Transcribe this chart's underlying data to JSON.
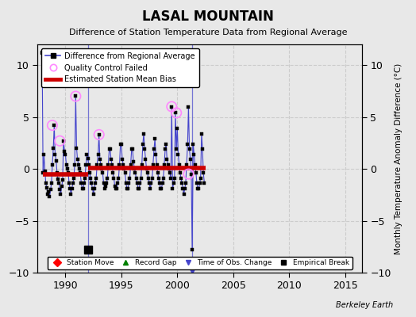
{
  "title": "LASAL MOUNTAIN",
  "subtitle": "Difference of Station Temperature Data from Regional Average",
  "ylabel": "Monthly Temperature Anomaly Difference (°C)",
  "ylim": [
    -10,
    12
  ],
  "yticks": [
    -10,
    -5,
    0,
    5,
    10
  ],
  "xlim": [
    1987.5,
    2016.5
  ],
  "xticks": [
    1990,
    1995,
    2000,
    2005,
    2010,
    2015
  ],
  "bg_color": "#e8e8e8",
  "plot_bg_color": "#e8e8e8",
  "grid_color": "#cccccc",
  "line_color": "#4444cc",
  "marker_color": "#000000",
  "bias_color": "#cc0000",
  "bias_seg1": [
    1988.0,
    1992.0,
    -0.55
  ],
  "bias_seg2": [
    1992.0,
    2002.5,
    0.08
  ],
  "empirical_break_x": 1992.0,
  "empirical_break_y": -7.8,
  "vertical_line1_x": 1992.0,
  "vertical_line2_x": 2001.3,
  "berkeley_earth_label": "Berkeley Earth",
  "qc_failed_x": [
    1988.83,
    1989.5,
    1990.92,
    1993.0,
    1999.5,
    1999.92,
    2001.0
  ],
  "qc_failed_y": [
    4.2,
    2.7,
    7.0,
    3.3,
    6.0,
    5.4,
    -0.5
  ],
  "data_x": [
    1988.0,
    1988.08,
    1988.17,
    1988.25,
    1988.33,
    1988.42,
    1988.5,
    1988.58,
    1988.67,
    1988.75,
    1988.83,
    1988.92,
    1989.0,
    1989.08,
    1989.17,
    1989.25,
    1989.33,
    1989.42,
    1989.5,
    1989.58,
    1989.67,
    1989.75,
    1989.83,
    1989.92,
    1990.0,
    1990.08,
    1990.17,
    1990.25,
    1990.33,
    1990.42,
    1990.5,
    1990.58,
    1990.67,
    1990.75,
    1990.83,
    1990.92,
    1991.0,
    1991.08,
    1991.17,
    1991.25,
    1991.33,
    1991.42,
    1991.5,
    1991.58,
    1991.67,
    1991.75,
    1991.83,
    1991.92,
    1992.0,
    1992.08,
    1992.17,
    1992.25,
    1992.33,
    1992.42,
    1992.5,
    1992.58,
    1992.67,
    1992.75,
    1992.83,
    1992.92,
    1993.0,
    1993.08,
    1993.17,
    1993.25,
    1993.33,
    1993.42,
    1993.5,
    1993.58,
    1993.67,
    1993.75,
    1993.83,
    1993.92,
    1994.0,
    1994.08,
    1994.17,
    1994.25,
    1994.33,
    1994.42,
    1994.5,
    1994.58,
    1994.67,
    1994.75,
    1994.83,
    1994.92,
    1995.0,
    1995.08,
    1995.17,
    1995.25,
    1995.33,
    1995.42,
    1995.5,
    1995.58,
    1995.67,
    1995.75,
    1995.83,
    1995.92,
    1996.0,
    1996.08,
    1996.17,
    1996.25,
    1996.33,
    1996.42,
    1996.5,
    1996.58,
    1996.67,
    1996.75,
    1996.83,
    1996.92,
    1997.0,
    1997.08,
    1997.17,
    1997.25,
    1997.33,
    1997.42,
    1997.5,
    1997.58,
    1997.67,
    1997.75,
    1997.83,
    1997.92,
    1998.0,
    1998.08,
    1998.17,
    1998.25,
    1998.33,
    1998.42,
    1998.5,
    1998.58,
    1998.67,
    1998.75,
    1998.83,
    1998.92,
    1999.0,
    1999.08,
    1999.17,
    1999.25,
    1999.33,
    1999.42,
    1999.5,
    1999.58,
    1999.67,
    1999.75,
    1999.83,
    1999.92,
    2000.0,
    2000.08,
    2000.17,
    2000.25,
    2000.33,
    2000.42,
    2000.5,
    2000.58,
    2000.67,
    2000.75,
    2000.83,
    2000.92,
    2001.0,
    2001.08,
    2001.17,
    2001.25,
    2001.33,
    2001.42,
    2001.5,
    2001.58,
    2001.67,
    2001.75,
    2001.83,
    2001.92,
    2002.0,
    2002.08,
    2002.17,
    2002.25,
    2002.33,
    2002.42
  ],
  "data_y": [
    -0.4,
    1.4,
    -0.2,
    -1.4,
    -1.8,
    -2.4,
    -2.2,
    -2.7,
    -2.0,
    -1.4,
    0.4,
    2.0,
    4.2,
    1.4,
    0.8,
    -0.4,
    -1.0,
    -1.4,
    -2.0,
    -2.4,
    -1.7,
    -1.1,
    2.7,
    1.7,
    1.4,
    0.4,
    0.0,
    -0.4,
    -1.4,
    -1.9,
    -2.4,
    -1.9,
    -1.4,
    -0.9,
    0.4,
    7.0,
    2.0,
    0.9,
    0.4,
    0.0,
    -0.4,
    -1.4,
    -1.9,
    -1.9,
    -1.4,
    -0.9,
    0.4,
    1.4,
    1.0,
    0.4,
    -0.4,
    -0.9,
    -1.4,
    -1.9,
    -2.4,
    -1.9,
    -1.4,
    -0.9,
    0.4,
    1.4,
    3.3,
    0.9,
    0.4,
    0.0,
    -0.4,
    -1.4,
    -1.9,
    -1.7,
    -1.4,
    -0.9,
    0.4,
    1.9,
    1.9,
    0.9,
    0.4,
    -0.4,
    -0.9,
    -1.7,
    -1.9,
    -1.9,
    -1.4,
    -0.9,
    0.4,
    2.4,
    2.4,
    0.9,
    0.4,
    0.0,
    -0.4,
    -1.4,
    -1.9,
    -1.9,
    -1.4,
    -0.9,
    0.4,
    1.9,
    1.9,
    0.7,
    0.0,
    -0.4,
    -0.9,
    -1.4,
    -1.9,
    -1.9,
    -1.4,
    -0.9,
    0.4,
    2.4,
    3.4,
    1.9,
    0.9,
    0.0,
    -0.4,
    -0.9,
    -1.4,
    -1.9,
    -1.4,
    -0.9,
    0.4,
    1.9,
    2.9,
    1.4,
    0.4,
    -0.4,
    -0.9,
    -1.4,
    -1.9,
    -1.9,
    -1.4,
    -0.9,
    0.4,
    1.9,
    2.4,
    0.9,
    0.4,
    0.0,
    -0.4,
    -0.9,
    6.0,
    -1.9,
    -1.4,
    -0.9,
    5.4,
    1.9,
    3.9,
    1.4,
    0.4,
    -0.4,
    -0.9,
    -1.4,
    -1.9,
    -2.4,
    -1.9,
    -1.4,
    0.4,
    2.4,
    6.0,
    1.9,
    0.9,
    -0.5,
    -7.8,
    2.4,
    1.4,
    0.4,
    -0.4,
    -1.4,
    -1.9,
    -1.9,
    -1.4,
    -0.9,
    3.4,
    1.9,
    -0.4,
    -1.4
  ],
  "lone_point_x": 1987.92,
  "lone_point_y": 11.2
}
